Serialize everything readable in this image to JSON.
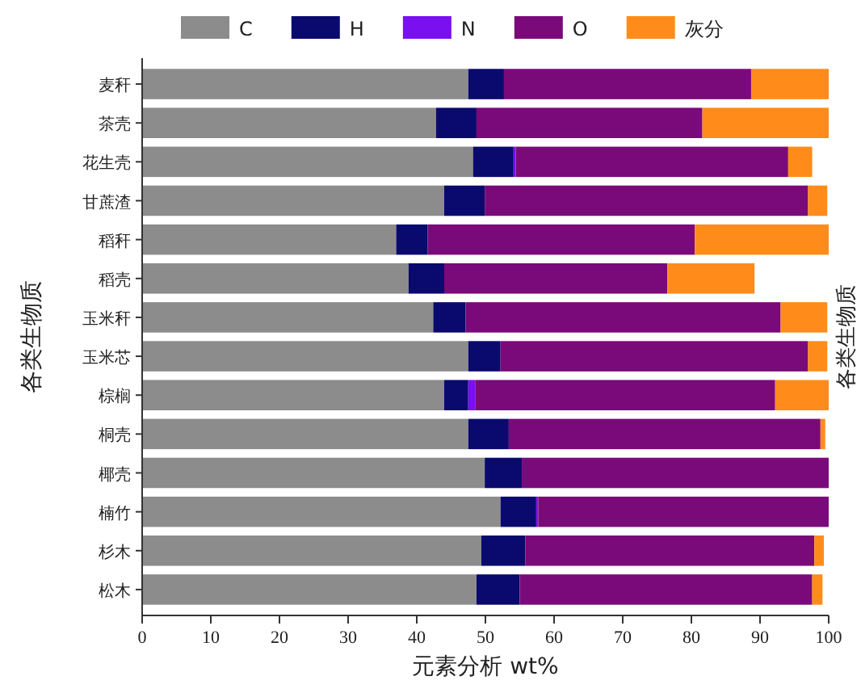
{
  "chart_data": {
    "type": "bar",
    "orientation": "horizontal",
    "stacked": true,
    "legend": "top",
    "xlabel": "元素分析 wt%",
    "ylabel": "各类生物质",
    "y2label": "各类生物质",
    "categories": [
      "麦秆",
      "茶壳",
      "花生壳",
      "甘蔗渣",
      "稻秆",
      "稻壳",
      "玉米秆",
      "玉米芯",
      "棕榈",
      "桐壳",
      "椰壳",
      "楠竹",
      "杉木",
      "松木"
    ],
    "xlim": [
      0,
      100
    ],
    "xticks": [
      0,
      10,
      20,
      30,
      40,
      50,
      60,
      70,
      80,
      90,
      100
    ],
    "series": [
      {
        "name": "C",
        "color": "#8c8c8c",
        "values": [
          47.5,
          42.8,
          48.2,
          44,
          37,
          38.8,
          42.4,
          47.5,
          44,
          47.5,
          49.9,
          52.2,
          49.4,
          48.7
        ]
      },
      {
        "name": "H",
        "color": "#0a0a6e",
        "values": [
          5.2,
          5.9,
          5.9,
          5.9,
          4.6,
          5.2,
          4.7,
          4.7,
          3.5,
          5.9,
          5.4,
          5.2,
          6.4,
          6.3
        ]
      },
      {
        "name": "N",
        "color": "#7a10f0",
        "values": [
          0,
          0,
          0.3,
          0,
          0,
          0,
          0,
          0,
          1,
          0,
          0,
          0.3,
          0,
          0
        ]
      },
      {
        "name": "O",
        "color": "#7a0a7a",
        "values": [
          36,
          32.9,
          39.7,
          47.1,
          38.9,
          32.5,
          45.9,
          44.8,
          43.7,
          45.4,
          44.7,
          42.3,
          42.1,
          42.6
        ]
      },
      {
        "name": "灰分",
        "color": "#ff8c1a",
        "values": [
          11.3,
          18.4,
          3.5,
          2.8,
          19.5,
          12.7,
          6.8,
          2.8,
          7.8,
          0.7,
          0,
          0,
          1.4,
          1.5
        ]
      }
    ]
  }
}
